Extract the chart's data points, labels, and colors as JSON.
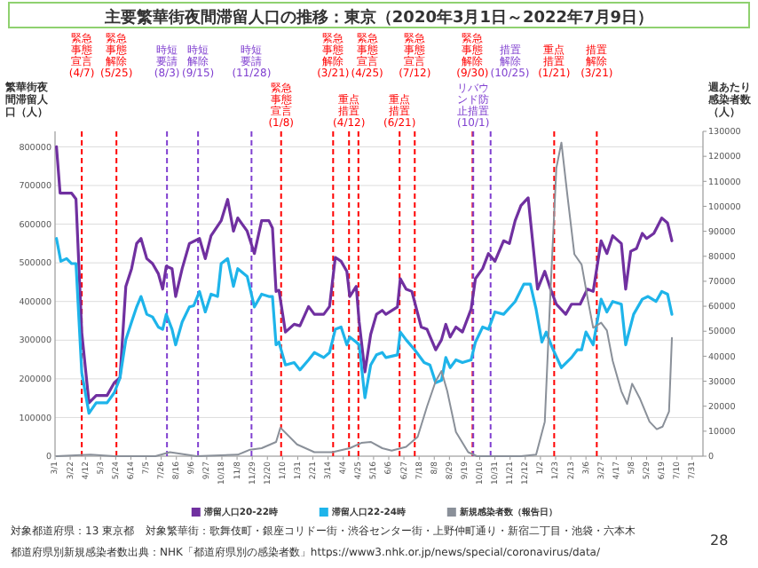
{
  "chart_data": {
    "type": "line",
    "title": "主要繁華街夜間滞留人口の推移：東京（2020年3月1日～2022年7月9日）",
    "ylabel": "繁華街夜間滞留人口（人）",
    "y2label": "週あたり感染者数（人）",
    "xlim": [
      "2020-03-01",
      "2022-08-15"
    ],
    "xticks": [
      {
        "value": "2020-03-01",
        "label": "3/1"
      },
      {
        "value": "2020-03-22",
        "label": "3/22"
      },
      {
        "value": "2020-04-12",
        "label": "4/12"
      },
      {
        "value": "2020-05-03",
        "label": "5/3"
      },
      {
        "value": "2020-05-24",
        "label": "5/24"
      },
      {
        "value": "2020-06-14",
        "label": "6/14"
      },
      {
        "value": "2020-07-05",
        "label": "7/5"
      },
      {
        "value": "2020-07-26",
        "label": "7/26"
      },
      {
        "value": "2020-08-16",
        "label": "8/16"
      },
      {
        "value": "2020-09-06",
        "label": "9/6"
      },
      {
        "value": "2020-09-27",
        "label": "9/27"
      },
      {
        "value": "2020-10-18",
        "label": "10/18"
      },
      {
        "value": "2020-11-08",
        "label": "11/8"
      },
      {
        "value": "2020-11-29",
        "label": "11/29"
      },
      {
        "value": "2020-12-20",
        "label": "12/20"
      },
      {
        "value": "2021-01-10",
        "label": "1/10"
      },
      {
        "value": "2021-01-31",
        "label": "1/31"
      },
      {
        "value": "2021-02-21",
        "label": "2/21"
      },
      {
        "value": "2021-03-14",
        "label": "3/14"
      },
      {
        "value": "2021-04-04",
        "label": "4/4"
      },
      {
        "value": "2021-04-25",
        "label": "4/25"
      },
      {
        "value": "2021-05-16",
        "label": "5/16"
      },
      {
        "value": "2021-06-06",
        "label": "6/6"
      },
      {
        "value": "2021-06-27",
        "label": "6/27"
      },
      {
        "value": "2021-07-18",
        "label": "7/18"
      },
      {
        "value": "2021-08-08",
        "label": "8/8"
      },
      {
        "value": "2021-08-29",
        "label": "8/29"
      },
      {
        "value": "2021-09-19",
        "label": "9/19"
      },
      {
        "value": "2021-10-10",
        "label": "10/10"
      },
      {
        "value": "2021-10-31",
        "label": "10/31"
      },
      {
        "value": "2021-11-21",
        "label": "11/21"
      },
      {
        "value": "2021-12-12",
        "label": "12/12"
      },
      {
        "value": "2022-01-02",
        "label": "1/2"
      },
      {
        "value": "2022-01-23",
        "label": "1/23"
      },
      {
        "value": "2022-02-13",
        "label": "2/13"
      },
      {
        "value": "2022-03-06",
        "label": "3/6"
      },
      {
        "value": "2022-03-27",
        "label": "3/27"
      },
      {
        "value": "2022-04-17",
        "label": "4/17"
      },
      {
        "value": "2022-05-08",
        "label": "5/8"
      },
      {
        "value": "2022-05-29",
        "label": "5/29"
      },
      {
        "value": "2022-06-19",
        "label": "6/19"
      },
      {
        "value": "2022-07-10",
        "label": "7/10"
      },
      {
        "value": "2022-07-31",
        "label": "7/31"
      }
    ],
    "ylim": [
      0,
      840000
    ],
    "yticks": [
      0,
      100000,
      200000,
      300000,
      400000,
      500000,
      600000,
      700000,
      800000
    ],
    "y2lim": [
      0,
      130000
    ],
    "y2ticks": [
      0,
      10000,
      20000,
      30000,
      40000,
      50000,
      60000,
      70000,
      80000,
      90000,
      100000,
      110000,
      120000,
      130000
    ],
    "grid": "y",
    "legend": "bottom",
    "marker": "none",
    "series": [
      {
        "name": "滞留人口20-22時",
        "color": "#7030a0",
        "x": [
          "2020-03-03",
          "2020-03-08",
          "2020-03-24",
          "2020-03-30",
          "2020-04-07",
          "2020-04-17",
          "2020-04-27",
          "2020-05-12",
          "2020-05-22",
          "2020-05-30",
          "2020-06-07",
          "2020-06-15",
          "2020-06-22",
          "2020-06-28",
          "2020-07-06",
          "2020-07-14",
          "2020-07-22",
          "2020-07-28",
          "2020-08-02",
          "2020-08-10",
          "2020-08-15",
          "2020-08-24",
          "2020-09-03",
          "2020-09-17",
          "2020-09-25",
          "2020-10-03",
          "2020-10-17",
          "2020-10-26",
          "2020-11-03",
          "2020-11-09",
          "2020-11-22",
          "2020-12-02",
          "2020-12-12",
          "2020-12-22",
          "2020-12-27",
          "2021-01-01",
          "2021-01-05",
          "2021-01-14",
          "2021-01-26",
          "2021-02-03",
          "2021-02-15",
          "2021-02-23",
          "2021-03-08",
          "2021-03-16",
          "2021-03-24",
          "2021-04-01",
          "2021-04-09",
          "2021-04-13",
          "2021-04-22",
          "2021-04-26",
          "2021-05-04",
          "2021-05-12",
          "2021-05-20",
          "2021-05-28",
          "2021-06-02",
          "2021-06-18",
          "2021-06-22",
          "2021-06-30",
          "2021-07-08",
          "2021-07-21",
          "2021-07-29",
          "2021-08-10",
          "2021-08-18",
          "2021-08-24",
          "2021-08-30",
          "2021-09-07",
          "2021-09-16",
          "2021-09-28",
          "2021-10-04",
          "2021-10-14",
          "2021-10-22",
          "2021-10-31",
          "2021-11-12",
          "2021-11-20",
          "2021-11-28",
          "2021-12-06",
          "2021-12-16",
          "2021-12-29",
          "2022-01-08",
          "2022-01-16",
          "2022-01-24",
          "2022-02-06",
          "2022-02-14",
          "2022-02-26",
          "2022-03-08",
          "2022-03-16",
          "2022-03-27",
          "2022-04-04",
          "2022-04-12",
          "2022-04-24",
          "2022-04-30",
          "2022-05-07",
          "2022-05-15",
          "2022-05-23",
          "2022-05-29",
          "2022-06-08",
          "2022-06-19",
          "2022-06-27",
          "2022-07-03"
        ],
        "values": [
          800000,
          680000,
          680000,
          665000,
          320000,
          138000,
          157000,
          157000,
          190000,
          203000,
          439000,
          485000,
          550000,
          563000,
          511000,
          498000,
          472000,
          432000,
          491000,
          485000,
          413000,
          485000,
          550000,
          563000,
          511000,
          570000,
          609000,
          664000,
          582000,
          616000,
          582000,
          524000,
          609000,
          609000,
          590000,
          426000,
          429000,
          321000,
          341000,
          337000,
          387000,
          367000,
          367000,
          387000,
          514000,
          504000,
          478000,
          413000,
          439000,
          348000,
          218000,
          315000,
          367000,
          377000,
          367000,
          386000,
          459000,
          432000,
          426000,
          334000,
          328000,
          275000,
          301000,
          341000,
          308000,
          334000,
          321000,
          380000,
          459000,
          485000,
          524000,
          504000,
          557000,
          550000,
          609000,
          648000,
          668000,
          432000,
          478000,
          432000,
          393000,
          367000,
          393000,
          393000,
          432000,
          426000,
          557000,
          524000,
          570000,
          550000,
          432000,
          530000,
          537000,
          576000,
          563000,
          576000,
          616000,
          603000,
          557000
        ]
      },
      {
        "name": "滞留人口22-24時",
        "color": "#1eb4ea",
        "x": [
          "2020-03-03",
          "2020-03-09",
          "2020-03-17",
          "2020-03-24",
          "2020-03-30",
          "2020-04-07",
          "2020-04-17",
          "2020-04-27",
          "2020-05-05",
          "2020-05-12",
          "2020-05-22",
          "2020-05-30",
          "2020-06-07",
          "2020-06-15",
          "2020-06-22",
          "2020-06-28",
          "2020-07-06",
          "2020-07-14",
          "2020-07-22",
          "2020-07-28",
          "2020-08-02",
          "2020-08-10",
          "2020-08-15",
          "2020-08-24",
          "2020-09-03",
          "2020-09-09",
          "2020-09-17",
          "2020-09-25",
          "2020-10-03",
          "2020-10-12",
          "2020-10-17",
          "2020-10-26",
          "2020-11-03",
          "2020-11-09",
          "2020-11-22",
          "2020-12-02",
          "2020-12-12",
          "2020-12-22",
          "2020-12-27",
          "2021-01-01",
          "2021-01-05",
          "2021-01-14",
          "2021-01-26",
          "2021-02-03",
          "2021-02-15",
          "2021-02-23",
          "2021-03-08",
          "2021-03-16",
          "2021-03-24",
          "2021-04-01",
          "2021-04-09",
          "2021-04-13",
          "2021-04-22",
          "2021-04-26",
          "2021-05-04",
          "2021-05-12",
          "2021-05-20",
          "2021-05-28",
          "2021-06-02",
          "2021-06-18",
          "2021-06-22",
          "2021-06-30",
          "2021-07-12",
          "2021-07-25",
          "2021-08-02",
          "2021-08-10",
          "2021-08-18",
          "2021-08-24",
          "2021-08-30",
          "2021-09-07",
          "2021-09-16",
          "2021-09-28",
          "2021-10-04",
          "2021-10-14",
          "2021-10-22",
          "2021-10-31",
          "2021-11-12",
          "2021-11-28",
          "2021-12-10",
          "2021-12-19",
          "2021-12-27",
          "2022-01-04",
          "2022-01-10",
          "2022-01-18",
          "2022-01-31",
          "2022-02-14",
          "2022-02-22",
          "2022-02-28",
          "2022-03-06",
          "2022-03-16",
          "2022-03-27",
          "2022-04-04",
          "2022-04-12",
          "2022-04-24",
          "2022-04-30",
          "2022-05-11",
          "2022-05-23",
          "2022-05-31",
          "2022-06-11",
          "2022-06-19",
          "2022-06-27",
          "2022-07-03"
        ],
        "values": [
          563000,
          504000,
          511000,
          498000,
          498000,
          216000,
          111000,
          138000,
          138000,
          138000,
          164000,
          203000,
          301000,
          347000,
          386000,
          413000,
          367000,
          360000,
          334000,
          328000,
          367000,
          328000,
          288000,
          347000,
          386000,
          389000,
          426000,
          373000,
          419000,
          413000,
          498000,
          511000,
          439000,
          485000,
          465000,
          386000,
          419000,
          413000,
          413000,
          288000,
          295000,
          236000,
          242000,
          223000,
          249000,
          268000,
          255000,
          268000,
          328000,
          334000,
          288000,
          308000,
          295000,
          288000,
          151000,
          236000,
          262000,
          268000,
          255000,
          262000,
          321000,
          301000,
          275000,
          242000,
          236000,
          190000,
          196000,
          255000,
          229000,
          249000,
          242000,
          249000,
          295000,
          334000,
          328000,
          373000,
          367000,
          400000,
          445000,
          445000,
          380000,
          295000,
          321000,
          282000,
          229000,
          255000,
          275000,
          275000,
          321000,
          288000,
          406000,
          373000,
          400000,
          393000,
          288000,
          367000,
          406000,
          413000,
          400000,
          426000,
          419000,
          367000
        ]
      },
      {
        "name": "新規感染者数（報告日）",
        "color": "#8a9099",
        "axis": "y2",
        "x": [
          "2020-03-03",
          "2020-04-19",
          "2020-05-22",
          "2020-07-18",
          "2020-08-07",
          "2020-09-13",
          "2020-11-09",
          "2020-11-26",
          "2020-12-12",
          "2021-01-01",
          "2021-01-07",
          "2021-01-30",
          "2021-02-23",
          "2021-03-20",
          "2021-04-13",
          "2021-04-29",
          "2021-05-12",
          "2021-05-28",
          "2021-06-10",
          "2021-06-30",
          "2021-07-16",
          "2021-07-29",
          "2021-08-10",
          "2021-08-18",
          "2021-08-26",
          "2021-09-07",
          "2021-09-24",
          "2021-10-06",
          "2021-12-06",
          "2021-12-27",
          "2022-01-08",
          "2022-01-16",
          "2022-01-24",
          "2022-01-31",
          "2022-02-08",
          "2022-02-18",
          "2022-02-28",
          "2022-03-10",
          "2022-03-16",
          "2022-03-27",
          "2022-04-04",
          "2022-04-12",
          "2022-04-24",
          "2022-05-02",
          "2022-05-09",
          "2022-05-20",
          "2022-06-02",
          "2022-06-12",
          "2022-06-20",
          "2022-06-29",
          "2022-07-03"
        ],
        "values": [
          0,
          600,
          0,
          0,
          1600,
          0,
          600,
          2600,
          3200,
          5700,
          11400,
          4700,
          1600,
          1600,
          3200,
          5300,
          5700,
          3200,
          2200,
          3700,
          7700,
          19900,
          30000,
          34100,
          26000,
          9700,
          1600,
          0,
          0,
          600,
          13800,
          66600,
          115300,
          125500,
          105200,
          80800,
          76700,
          60500,
          51400,
          53400,
          50300,
          38200,
          26000,
          20900,
          29000,
          22900,
          13800,
          10800,
          11800,
          17900,
          47300
        ]
      }
    ],
    "ref_lines": [
      {
        "axis": "x",
        "value": "2020-04-07",
        "label": "緊急事態宣言(4/7)",
        "color": "#ff0000",
        "line_style": "dashed"
      },
      {
        "axis": "x",
        "value": "2020-05-25",
        "label": "緊急事態解除(5/25)",
        "color": "#ff0000",
        "line_style": "dashed"
      },
      {
        "axis": "x",
        "value": "2020-08-03",
        "label": "時短要請(8/3)",
        "color": "#8040d0",
        "line_style": "dashed"
      },
      {
        "axis": "x",
        "value": "2020-09-15",
        "label": "時短解除(9/15)",
        "color": "#8040d0",
        "line_style": "dashed"
      },
      {
        "axis": "x",
        "value": "2020-11-28",
        "label": "時短要請(11/28)",
        "color": "#8040d0",
        "line_style": "dashed"
      },
      {
        "axis": "x",
        "value": "2021-01-08",
        "label": "緊急事態宣言(1/8)",
        "color": "#ff0000",
        "line_style": "dashed"
      },
      {
        "axis": "x",
        "value": "2021-03-21",
        "label": "緊急事態解除(3/21)",
        "color": "#ff0000",
        "line_style": "dashed"
      },
      {
        "axis": "x",
        "value": "2021-04-12",
        "label": "重点措置(4/12)",
        "color": "#ff0000",
        "line_style": "dashed"
      },
      {
        "axis": "x",
        "value": "2021-04-25",
        "label": "緊急事態宣言(4/25)",
        "color": "#ff0000",
        "line_style": "dashed"
      },
      {
        "axis": "x",
        "value": "2021-06-21",
        "label": "重点措置(6/21)",
        "color": "#ff0000",
        "line_style": "dashed"
      },
      {
        "axis": "x",
        "value": "2021-07-12",
        "label": "緊急事態宣言(7/12)",
        "color": "#ff0000",
        "line_style": "dashed"
      },
      {
        "axis": "x",
        "value": "2021-09-30",
        "label": "緊急事態解除(9/30)",
        "color": "#ff0000",
        "line_style": "dashed"
      },
      {
        "axis": "x",
        "value": "2021-10-01",
        "label": "リバウンド防止措置(10/1)",
        "color": "#8040d0",
        "line_style": "dashed"
      },
      {
        "axis": "x",
        "value": "2021-10-25",
        "label": "措置解除(10/25)",
        "color": "#8040d0",
        "line_style": "dashed"
      },
      {
        "axis": "x",
        "value": "2022-01-21",
        "label": "重点措置(1/21)",
        "color": "#ff0000",
        "line_style": "dashed"
      },
      {
        "axis": "x",
        "value": "2022-03-21",
        "label": "措置解除(3/21)",
        "color": "#ff0000",
        "line_style": "dashed"
      }
    ],
    "annotations": [
      "対象都道府県：13 東京都",
      "対象繁華街：歌舞伎町・銀座コリドー街・渋谷センター街・上野仲町通り・新宿二丁目・池袋・六本木",
      "都道府県別新規感染者数出典：NHK「都道府県別の感染者数」https://www3.nhk.or.jp/news/special/coronavirus/data/",
      "28"
    ]
  }
}
